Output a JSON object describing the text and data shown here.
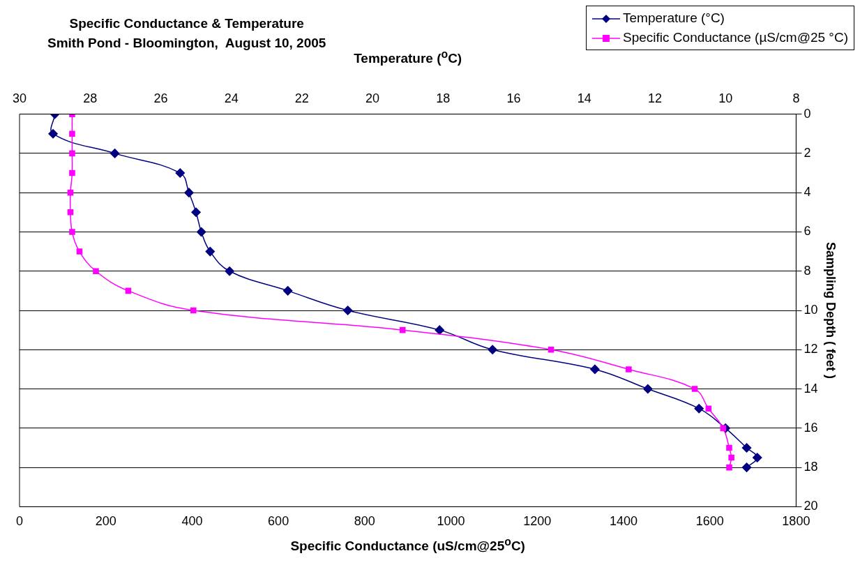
{
  "chart_data": {
    "type": "line",
    "title": "Specific Conductance & Temperature",
    "subtitle": "Smith Pond - Bloomington,  August 10, 2005",
    "xlabel": "Specific Conductance (uS/cm@25$^{o}$C)",
    "x2label": "Temperature ($^{o}$C)",
    "ylabel": "Sampling Depth ( feet )",
    "xlim": [
      0,
      1800
    ],
    "xticks": [
      0,
      200,
      400,
      600,
      800,
      1000,
      1200,
      1400,
      1600,
      1800
    ],
    "x2lim": [
      30,
      8
    ],
    "x2ticks": [
      30,
      28,
      26,
      24,
      22,
      20,
      18,
      16,
      14,
      12,
      10,
      8
    ],
    "ylim": [
      20,
      0
    ],
    "yticks": [
      0,
      2,
      4,
      6,
      8,
      10,
      12,
      14,
      16,
      18,
      20
    ],
    "grid": "y",
    "legend": "top right",
    "series": [
      {
        "name": "Temperature (°C)",
        "color": "#000080",
        "axis": "x2",
        "marker": "diamond",
        "x": [
          29.0,
          29.05,
          27.3,
          25.45,
          25.2,
          25.0,
          24.85,
          24.6,
          24.05,
          22.4,
          20.7,
          18.1,
          16.6,
          13.7,
          12.2,
          10.75,
          10.0,
          9.4,
          9.1,
          9.4
        ],
        "values": [
          0,
          1,
          2,
          3,
          4,
          5,
          6,
          7,
          8,
          9,
          10,
          11,
          12,
          13,
          14,
          15,
          16,
          17,
          17.5,
          18
        ]
      },
      {
        "name": "Specific Conductance (µS/cm@25 °C)",
        "color": "#ff00ff",
        "marker": "square",
        "x": [
          122,
          122,
          122,
          122,
          118,
          118,
          122,
          139,
          177,
          252,
          403,
          888,
          1232,
          1412,
          1565,
          1597,
          1631,
          1645,
          1650,
          1645
        ],
        "values": [
          0,
          1,
          2,
          3,
          4,
          5,
          6,
          7,
          8,
          9,
          10,
          11,
          12,
          13,
          14,
          15,
          16,
          17,
          17.5,
          18
        ]
      }
    ]
  }
}
